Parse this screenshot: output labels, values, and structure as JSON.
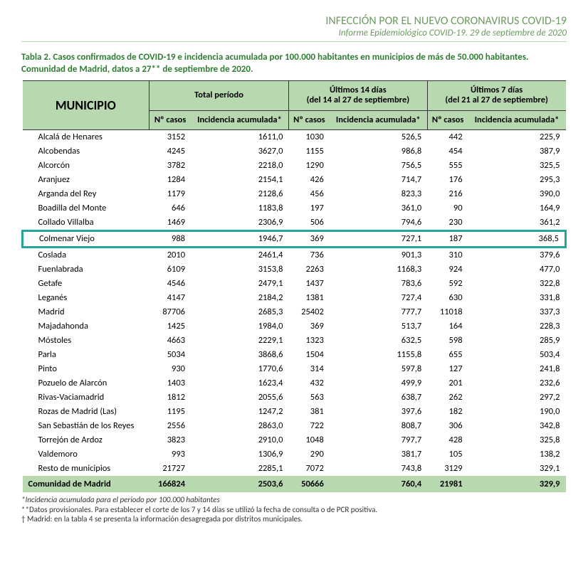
{
  "header": {
    "title": "INFECCIÓN POR EL NUEVO CORONAVIRUS COVID-19",
    "subtitle": "Informe Epidemiológico COVID-19. 29 de septiembre de 2020"
  },
  "caption": "Tabla 2. Casos confirmados de COVID-19 e incidencia acumulada por 100.000 habitantes en municipios de más de 50.000 habitantes. Comunidad de Madrid, datos a 27** de septiembre de 2020.",
  "columns": {
    "muni": "MUNICIPIO",
    "group_total": "Total período",
    "group_14": "Últimos 14 días\n(del 14 al 27  de septiembre)",
    "group_7": "Últimos 7 días\n(del 21 al 27 de septiembre)",
    "ncasos": "Nº casos",
    "incidencia": "Incidencia acumulada*"
  },
  "highlight_row": "Colmenar Viejo",
  "rows": [
    {
      "m": "Alcalá de Henares",
      "c1": "3152",
      "i1": "1611,0",
      "c2": "1030",
      "i2": "526,5",
      "c3": "442",
      "i3": "225,9"
    },
    {
      "m": "Alcobendas",
      "c1": "4245",
      "i1": "3627,0",
      "c2": "1155",
      "i2": "986,8",
      "c3": "454",
      "i3": "387,9"
    },
    {
      "m": "Alcorcón",
      "c1": "3782",
      "i1": "2218,0",
      "c2": "1290",
      "i2": "756,5",
      "c3": "555",
      "i3": "325,5"
    },
    {
      "m": "Aranjuez",
      "c1": "1284",
      "i1": "2154,1",
      "c2": "426",
      "i2": "714,7",
      "c3": "176",
      "i3": "295,3"
    },
    {
      "m": "Arganda del Rey",
      "c1": "1179",
      "i1": "2128,6",
      "c2": "456",
      "i2": "823,3",
      "c3": "216",
      "i3": "390,0"
    },
    {
      "m": "Boadilla del Monte",
      "c1": "646",
      "i1": "1183,8",
      "c2": "197",
      "i2": "361,0",
      "c3": "90",
      "i3": "164,9"
    },
    {
      "m": "Collado Villalba",
      "c1": "1469",
      "i1": "2306,9",
      "c2": "506",
      "i2": "794,6",
      "c3": "230",
      "i3": "361,2"
    },
    {
      "m": "Colmenar Viejo",
      "c1": "988",
      "i1": "1946,7",
      "c2": "369",
      "i2": "727,1",
      "c3": "187",
      "i3": "368,5"
    },
    {
      "m": "Coslada",
      "c1": "2010",
      "i1": "2461,4",
      "c2": "736",
      "i2": "901,3",
      "c3": "310",
      "i3": "379,6"
    },
    {
      "m": "Fuenlabrada",
      "c1": "6109",
      "i1": "3153,8",
      "c2": "2263",
      "i2": "1168,3",
      "c3": "924",
      "i3": "477,0"
    },
    {
      "m": "Getafe",
      "c1": "4546",
      "i1": "2479,1",
      "c2": "1437",
      "i2": "783,6",
      "c3": "592",
      "i3": "322,8"
    },
    {
      "m": "Leganés",
      "c1": "4147",
      "i1": "2184,2",
      "c2": "1381",
      "i2": "727,4",
      "c3": "630",
      "i3": "331,8"
    },
    {
      "m": "Madrid",
      "c1": "87706",
      "i1": "2685,3",
      "c2": "25402",
      "i2": "777,7",
      "c3": "11018",
      "i3": "337,3"
    },
    {
      "m": "Majadahonda",
      "c1": "1425",
      "i1": "1984,0",
      "c2": "369",
      "i2": "513,7",
      "c3": "164",
      "i3": "228,3"
    },
    {
      "m": "Móstoles",
      "c1": "4663",
      "i1": "2229,1",
      "c2": "1323",
      "i2": "632,5",
      "c3": "598",
      "i3": "285,9"
    },
    {
      "m": "Parla",
      "c1": "5034",
      "i1": "3868,6",
      "c2": "1504",
      "i2": "1155,8",
      "c3": "655",
      "i3": "503,4"
    },
    {
      "m": "Pinto",
      "c1": "930",
      "i1": "1770,6",
      "c2": "314",
      "i2": "597,8",
      "c3": "127",
      "i3": "241,8"
    },
    {
      "m": "Pozuelo de Alarcón",
      "c1": "1403",
      "i1": "1623,4",
      "c2": "432",
      "i2": "499,9",
      "c3": "201",
      "i3": "232,6"
    },
    {
      "m": "Rivas-Vaciamadrid",
      "c1": "1812",
      "i1": "2055,6",
      "c2": "563",
      "i2": "638,7",
      "c3": "262",
      "i3": "297,2"
    },
    {
      "m": "Rozas de Madrid (Las)",
      "c1": "1195",
      "i1": "1247,2",
      "c2": "381",
      "i2": "397,6",
      "c3": "182",
      "i3": "190,0"
    },
    {
      "m": "San Sebastián de los Reyes",
      "c1": "2556",
      "i1": "2863,0",
      "c2": "722",
      "i2": "808,7",
      "c3": "306",
      "i3": "342,8"
    },
    {
      "m": "Torrejón de Ardoz",
      "c1": "3823",
      "i1": "2910,0",
      "c2": "1048",
      "i2": "797,7",
      "c3": "428",
      "i3": "325,8"
    },
    {
      "m": "Valdemoro",
      "c1": "993",
      "i1": "1306,9",
      "c2": "290",
      "i2": "381,7",
      "c3": "105",
      "i3": "138,2"
    },
    {
      "m": "Resto de municipios",
      "c1": "21727",
      "i1": "2285,1",
      "c2": "7072",
      "i2": "743,8",
      "c3": "3129",
      "i3": "329,1"
    }
  ],
  "total": {
    "m": "Comunidad de Madrid",
    "c1": "166824",
    "i1": "2503,6",
    "c2": "50666",
    "i2": "760,4",
    "c3": "21981",
    "i3": "329,9"
  },
  "footnotes": {
    "f1": "*Incidencia acumulada para el periodo por 100.000 habitantes",
    "f2": "**Datos provisionales. Para establecer el corte de los 7 y 14 días se utilizó la fecha de consulta o de PCR positiva.",
    "f3": "† Madrid: en la tabla 4 se presenta la información desagregada por distritos municipales."
  },
  "colors": {
    "header_green": "#6b9b5e",
    "caption_green": "#2e7d32",
    "table_header_bg": "#b8d8b0",
    "highlight_border": "#26a69a",
    "text": "#333333",
    "background": "#ffffff"
  }
}
